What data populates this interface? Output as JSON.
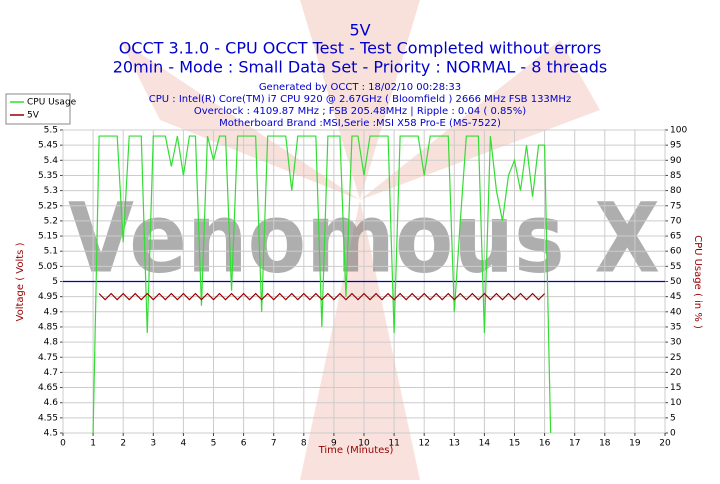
{
  "chart_data": {
    "type": "line",
    "title": "5V",
    "subtitle": "OCCT 3.1.0 - CPU OCCT Test - Test Completed without errors",
    "subtitle2": "20min - Mode : Small Data Set - Priority : NORMAL - 8 threads",
    "info": [
      "Generated by OCCT : 18/02/10 00:28:33",
      "CPU : Intel(R) Core(TM) i7 CPU 920 @ 2.67GHz ( Bloomfield ) 2666 MHz FSB 133MHz",
      "Overclock : 4109.87 MHz ; FSB 205.48MHz | Ripple : 0.04 ( 0.85%)",
      "Motherboard Brand :MSI,Serie :MSI X58 Pro-E (MS-7522)"
    ],
    "watermark": "Venomous X",
    "x_label": "Time (Minutes)",
    "y_label": "Voltage ( Volts )",
    "y2_label": "CPU Usage ( in % )",
    "x": [
      1.0,
      1.2,
      1.4,
      1.6,
      1.8,
      2.0,
      2.2,
      2.4,
      2.6,
      2.8,
      3.0,
      3.2,
      3.4,
      3.6,
      3.8,
      4.0,
      4.2,
      4.4,
      4.6,
      4.8,
      5.0,
      5.2,
      5.4,
      5.6,
      5.8,
      6.0,
      6.2,
      6.4,
      6.6,
      6.8,
      7.0,
      7.2,
      7.4,
      7.6,
      7.8,
      8.0,
      8.2,
      8.4,
      8.6,
      8.8,
      9.0,
      9.2,
      9.4,
      9.6,
      9.8,
      10.0,
      10.2,
      10.4,
      10.6,
      10.8,
      11.0,
      11.2,
      11.4,
      11.6,
      11.8,
      12.0,
      12.2,
      12.4,
      12.6,
      12.8,
      13.0,
      13.2,
      13.4,
      13.6,
      13.8,
      14.0,
      14.2,
      14.4,
      14.6,
      14.8,
      15.0,
      15.2,
      15.4,
      15.6,
      15.8,
      16.0,
      16.2
    ],
    "series": [
      {
        "name": "CPU Usage",
        "color": "#33dd33",
        "axis": "y2",
        "values": [
          0,
          98,
          98,
          98,
          98,
          63,
          98,
          98,
          98,
          33,
          98,
          98,
          98,
          88,
          98,
          85,
          98,
          98,
          42,
          98,
          90,
          98,
          98,
          47,
          98,
          98,
          98,
          98,
          40,
          98,
          98,
          98,
          98,
          80,
          98,
          98,
          98,
          98,
          35,
          98,
          98,
          98,
          45,
          98,
          98,
          85,
          98,
          98,
          98,
          98,
          33,
          98,
          98,
          98,
          98,
          85,
          98,
          98,
          98,
          98,
          40,
          70,
          98,
          98,
          98,
          33,
          98,
          80,
          70,
          85,
          90,
          80,
          95,
          78,
          95,
          95,
          0
        ]
      },
      {
        "name": "5V",
        "color": "#990000",
        "values": [
          null,
          4.96,
          4.94,
          4.96,
          4.94,
          4.96,
          4.94,
          4.96,
          4.94,
          4.96,
          4.94,
          4.96,
          4.94,
          4.96,
          4.94,
          4.96,
          4.94,
          4.96,
          4.94,
          4.96,
          4.94,
          4.96,
          4.94,
          4.96,
          4.94,
          4.96,
          4.94,
          4.96,
          4.94,
          4.96,
          4.94,
          4.96,
          4.94,
          4.96,
          4.94,
          4.96,
          4.94,
          4.96,
          4.94,
          4.96,
          4.94,
          4.96,
          4.94,
          4.96,
          4.94,
          4.96,
          4.94,
          4.96,
          4.94,
          4.96,
          4.94,
          4.96,
          4.94,
          4.96,
          4.94,
          4.96,
          4.94,
          4.96,
          4.94,
          4.96,
          4.94,
          4.96,
          4.94,
          4.96,
          4.94,
          4.96,
          4.94,
          4.96,
          4.94,
          4.96,
          4.94,
          4.96,
          4.94,
          4.96,
          4.94,
          4.96,
          null
        ]
      }
    ],
    "reference_line": 5,
    "reference_color": "#0000cc",
    "xlim": [
      0,
      20
    ],
    "xticks": [
      0,
      1,
      2,
      3,
      4,
      5,
      6,
      7,
      8,
      9,
      10,
      11,
      12,
      13,
      14,
      15,
      16,
      17,
      18,
      19,
      20
    ],
    "ylim": [
      4.5,
      5.5
    ],
    "yticks": [
      4.5,
      4.55,
      4.6,
      4.65,
      4.7,
      4.75,
      4.8,
      4.85,
      4.9,
      4.95,
      5,
      5.05,
      5.1,
      5.15,
      5.2,
      5.25,
      5.3,
      5.35,
      5.4,
      5.45,
      5.5
    ],
    "y2lim": [
      0,
      100
    ],
    "y2ticks": [
      0,
      5,
      10,
      15,
      20,
      25,
      30,
      35,
      40,
      45,
      50,
      55,
      60,
      65,
      70,
      75,
      80,
      85,
      90,
      95,
      100
    ],
    "grid": true
  }
}
